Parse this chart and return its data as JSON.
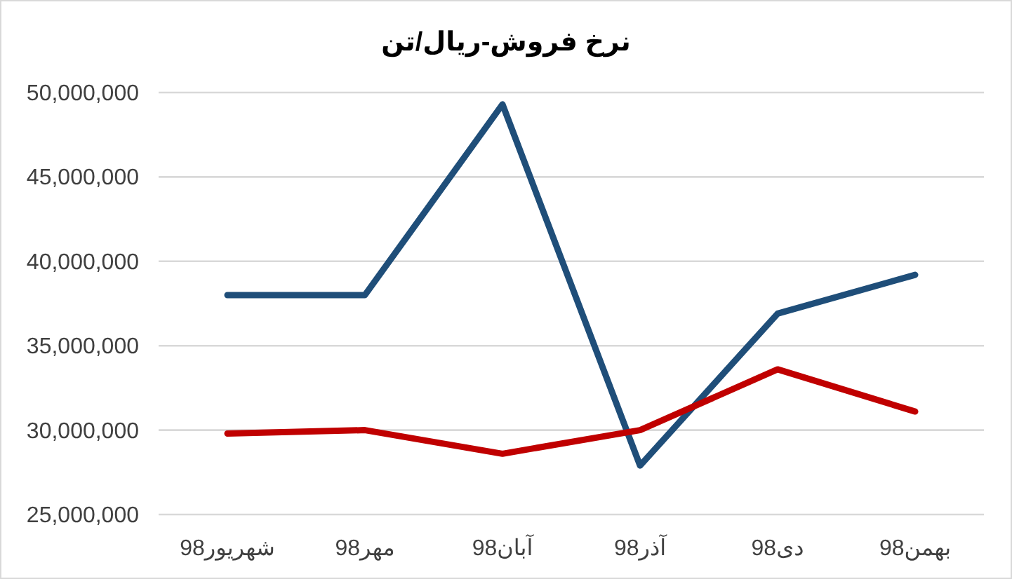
{
  "chart_data": {
    "type": "line",
    "title": "نرخ فروش-ریال/تن",
    "categories": [
      "شهریور98",
      "مهر98",
      "آبان98",
      "آذر98",
      "دی98",
      "بهمن98"
    ],
    "series": [
      {
        "color": "#1f4e79",
        "values": [
          38000000,
          38000000,
          49300000,
          27900000,
          36900000,
          39200000
        ]
      },
      {
        "color": "#c00000",
        "values": [
          29800000,
          30000000,
          28600000,
          30000000,
          33600000,
          31100000
        ]
      }
    ],
    "ylim": [
      25000000,
      50000000
    ],
    "yticks": [
      {
        "value": 25000000,
        "label": "25,000,000"
      },
      {
        "value": 30000000,
        "label": "30,000,000"
      },
      {
        "value": 35000000,
        "label": "35,000,000"
      },
      {
        "value": 40000000,
        "label": "40,000,000"
      },
      {
        "value": 45000000,
        "label": "45,000,000"
      },
      {
        "value": 50000000,
        "label": "50,000,000"
      }
    ],
    "grid": "y",
    "marker": "none",
    "line_style": "solid"
  }
}
